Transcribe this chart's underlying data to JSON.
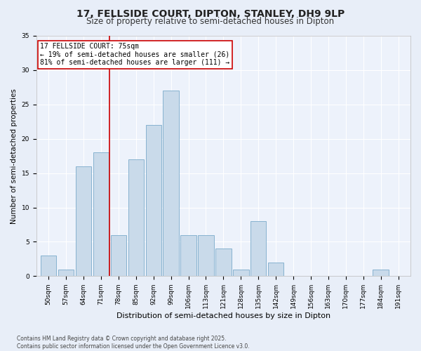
{
  "title": "17, FELLSIDE COURT, DIPTON, STANLEY, DH9 9LP",
  "subtitle": "Size of property relative to semi-detached houses in Dipton",
  "xlabel": "Distribution of semi-detached houses by size in Dipton",
  "ylabel": "Number of semi-detached properties",
  "bins": [
    "50sqm",
    "57sqm",
    "64sqm",
    "71sqm",
    "78sqm",
    "85sqm",
    "92sqm",
    "99sqm",
    "106sqm",
    "113sqm",
    "121sqm",
    "128sqm",
    "135sqm",
    "142sqm",
    "149sqm",
    "156sqm",
    "163sqm",
    "170sqm",
    "177sqm",
    "184sqm",
    "191sqm"
  ],
  "values": [
    3,
    1,
    16,
    18,
    6,
    17,
    22,
    27,
    6,
    6,
    4,
    1,
    8,
    2,
    0,
    0,
    0,
    0,
    0,
    1,
    0
  ],
  "bar_color": "#c9daea",
  "bar_edge_color": "#7aaaca",
  "vline_x": 3.5,
  "annotation_text": "17 FELLSIDE COURT: 75sqm\n← 19% of semi-detached houses are smaller (26)\n81% of semi-detached houses are larger (111) →",
  "annotation_box_color": "#ffffff",
  "annotation_box_edge": "#cc0000",
  "vline_color": "#cc0000",
  "ylim": [
    0,
    35
  ],
  "yticks": [
    0,
    5,
    10,
    15,
    20,
    25,
    30,
    35
  ],
  "bg_color": "#e8eef8",
  "plot_bg_color": "#edf2fb",
  "grid_color": "#ffffff",
  "footer": "Contains HM Land Registry data © Crown copyright and database right 2025.\nContains public sector information licensed under the Open Government Licence v3.0.",
  "title_fontsize": 10,
  "subtitle_fontsize": 8.5,
  "xlabel_fontsize": 8,
  "ylabel_fontsize": 7.5,
  "tick_fontsize": 6.5,
  "annotation_fontsize": 7,
  "footer_fontsize": 5.5
}
